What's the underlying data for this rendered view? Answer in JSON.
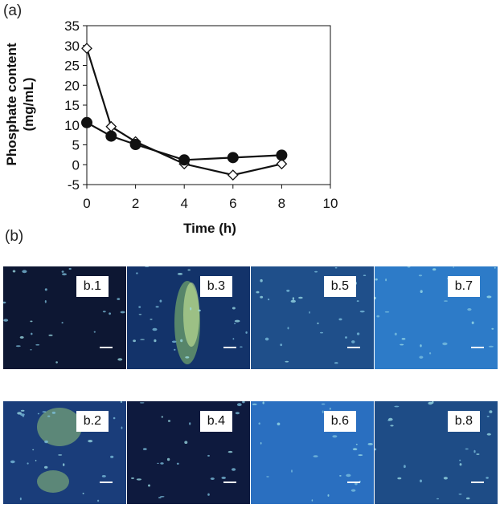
{
  "panels": {
    "a_label": "(a)",
    "b_label": "(b)"
  },
  "chart_data": {
    "type": "line",
    "xlabel": "Time (h)",
    "ylabel": "Phosphate content (mg/mL)",
    "xlim": [
      0,
      10
    ],
    "ylim": [
      -5,
      35
    ],
    "xticks": [
      0,
      2,
      4,
      6,
      8,
      10
    ],
    "yticks": [
      -5,
      0,
      5,
      10,
      15,
      20,
      25,
      30,
      35
    ],
    "grid": false,
    "series": [
      {
        "marker": "open-diamond",
        "x": [
          0,
          1,
          2,
          4,
          6,
          8
        ],
        "y": [
          29.3,
          9.6,
          5.8,
          0.2,
          -2.6,
          0.2
        ]
      },
      {
        "marker": "filled-circle",
        "x": [
          0,
          1,
          2,
          4,
          6,
          8
        ],
        "y": [
          10.6,
          7.2,
          5.1,
          1.2,
          1.8,
          2.4
        ]
      }
    ]
  },
  "micrographs": {
    "row1": [
      {
        "label": "b.1"
      },
      {
        "label": "b.3"
      },
      {
        "label": "b.5"
      },
      {
        "label": "b.7"
      }
    ],
    "row2": [
      {
        "label": "b.2"
      },
      {
        "label": "b.4"
      },
      {
        "label": "b.6"
      },
      {
        "label": "b.8"
      }
    ]
  }
}
